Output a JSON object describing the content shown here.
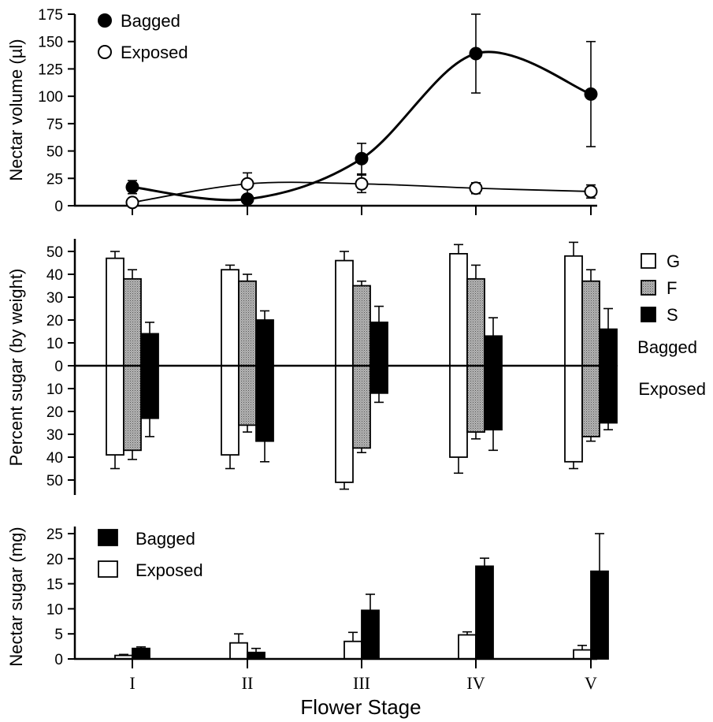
{
  "x_axis_title": "Flower Stage",
  "chart_data": [
    {
      "type": "line",
      "ylabel": "Nectar volume (µl)",
      "categories": [
        "I",
        "II",
        "III",
        "IV",
        "V"
      ],
      "ylim": [
        0,
        175
      ],
      "yticks": [
        0,
        25,
        50,
        75,
        100,
        125,
        150,
        175
      ],
      "legend": "top-left",
      "series": [
        {
          "name": "Bagged",
          "marker": "filled-circle",
          "values": [
            17,
            6,
            43,
            139,
            102
          ],
          "errors": [
            6,
            3,
            14,
            36,
            48
          ]
        },
        {
          "name": "Exposed",
          "marker": "open-circle",
          "values": [
            3,
            20,
            20,
            16,
            13
          ],
          "errors": [
            3,
            10,
            8,
            5,
            6
          ]
        }
      ]
    },
    {
      "type": "bar",
      "ylabel": "Percent sugar (by weight)",
      "categories": [
        "I",
        "II",
        "III",
        "IV",
        "V"
      ],
      "ylim": [
        -55,
        55
      ],
      "yticks": [
        0,
        10,
        20,
        30,
        40,
        50
      ],
      "upper_label": "Bagged",
      "lower_label": "Exposed",
      "legend": "top-right",
      "series": [
        {
          "name": "G",
          "fill": "white",
          "bagged": [
            47,
            42,
            46,
            49,
            48
          ],
          "bagged_err": [
            3,
            2,
            4,
            4,
            6
          ],
          "exposed": [
            39,
            39,
            51,
            40,
            42
          ],
          "exposed_err": [
            6,
            6,
            3,
            7,
            3
          ]
        },
        {
          "name": "F",
          "fill": "stipple",
          "bagged": [
            38,
            37,
            35,
            38,
            37
          ],
          "bagged_err": [
            4,
            3,
            2,
            6,
            5
          ],
          "exposed": [
            37,
            26,
            36,
            29,
            31
          ],
          "exposed_err": [
            4,
            3,
            2,
            3,
            2
          ]
        },
        {
          "name": "S",
          "fill": "black",
          "bagged": [
            14,
            20,
            19,
            13,
            16
          ],
          "bagged_err": [
            5,
            4,
            7,
            8,
            9
          ],
          "exposed": [
            23,
            33,
            12,
            28,
            25
          ],
          "exposed_err": [
            8,
            9,
            4,
            9,
            3
          ]
        }
      ]
    },
    {
      "type": "bar",
      "ylabel": "Nectar sugar (mg)",
      "categories": [
        "I",
        "II",
        "III",
        "IV",
        "V"
      ],
      "ylim": [
        0,
        25
      ],
      "yticks": [
        0,
        5,
        10,
        15,
        20,
        25
      ],
      "legend": "top-left",
      "series": [
        {
          "name": "Exposed",
          "fill": "white",
          "values": [
            0.7,
            3.2,
            3.5,
            4.8,
            1.8
          ],
          "errors": [
            0.2,
            1.8,
            1.8,
            0.6,
            0.9
          ]
        },
        {
          "name": "Bagged",
          "fill": "black",
          "values": [
            2.1,
            1.3,
            9.7,
            18.5,
            17.5
          ],
          "errors": [
            0.3,
            0.8,
            3.2,
            1.6,
            7.5
          ]
        }
      ]
    }
  ]
}
